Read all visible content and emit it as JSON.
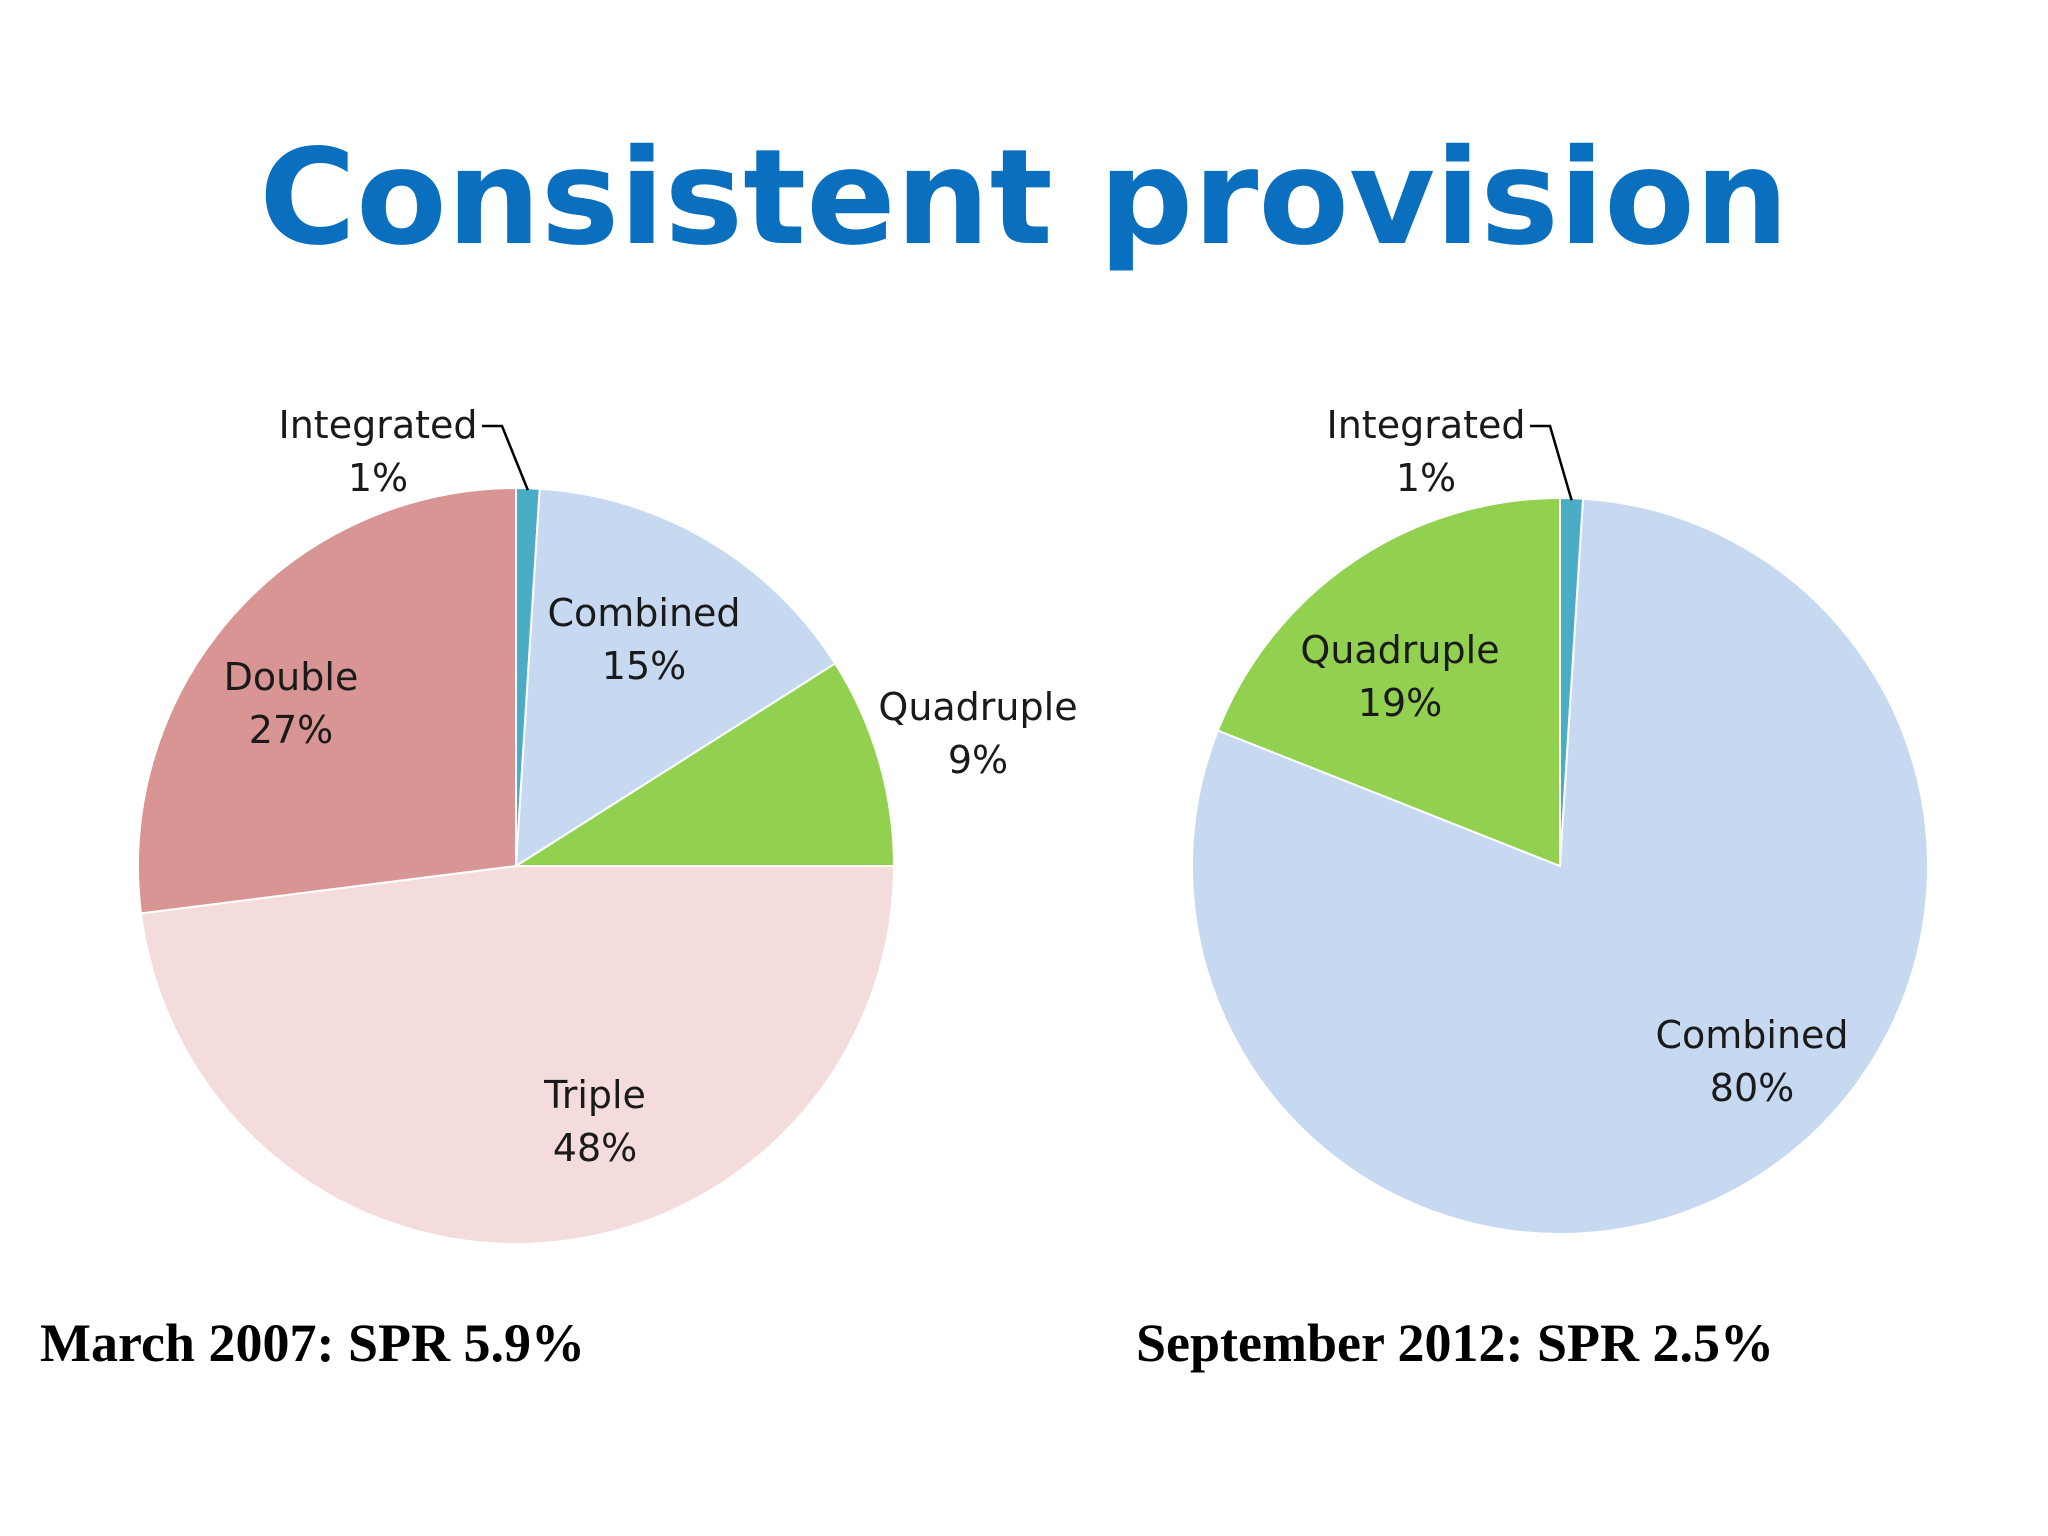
{
  "slide": {
    "title": "Consistent provision"
  },
  "chart_data": [
    {
      "type": "pie",
      "caption": "March 2007: SPR 5.9%",
      "slices": [
        {
          "name": "Integrated",
          "value": 1,
          "label": "1%",
          "color": "#4bacc6"
        },
        {
          "name": "Combined",
          "value": 15,
          "label": "15%",
          "color": "#c6d9f1"
        },
        {
          "name": "Quadruple",
          "value": 9,
          "label": "9%",
          "color": "#92d050"
        },
        {
          "name": "Triple",
          "value": 48,
          "label": "48%",
          "color": "#f4dcdc"
        },
        {
          "name": "Double",
          "value": 27,
          "label": "27%",
          "color": "#d99594"
        }
      ]
    },
    {
      "type": "pie",
      "caption": "September 2012: SPR 2.5%",
      "slices": [
        {
          "name": "Integrated",
          "value": 1,
          "label": "1%",
          "color": "#4bacc6"
        },
        {
          "name": "Combined",
          "value": 80,
          "label": "80%",
          "color": "#c6d9f1"
        },
        {
          "name": "Quadruple",
          "value": 19,
          "label": "19%",
          "color": "#92d050"
        }
      ]
    }
  ]
}
